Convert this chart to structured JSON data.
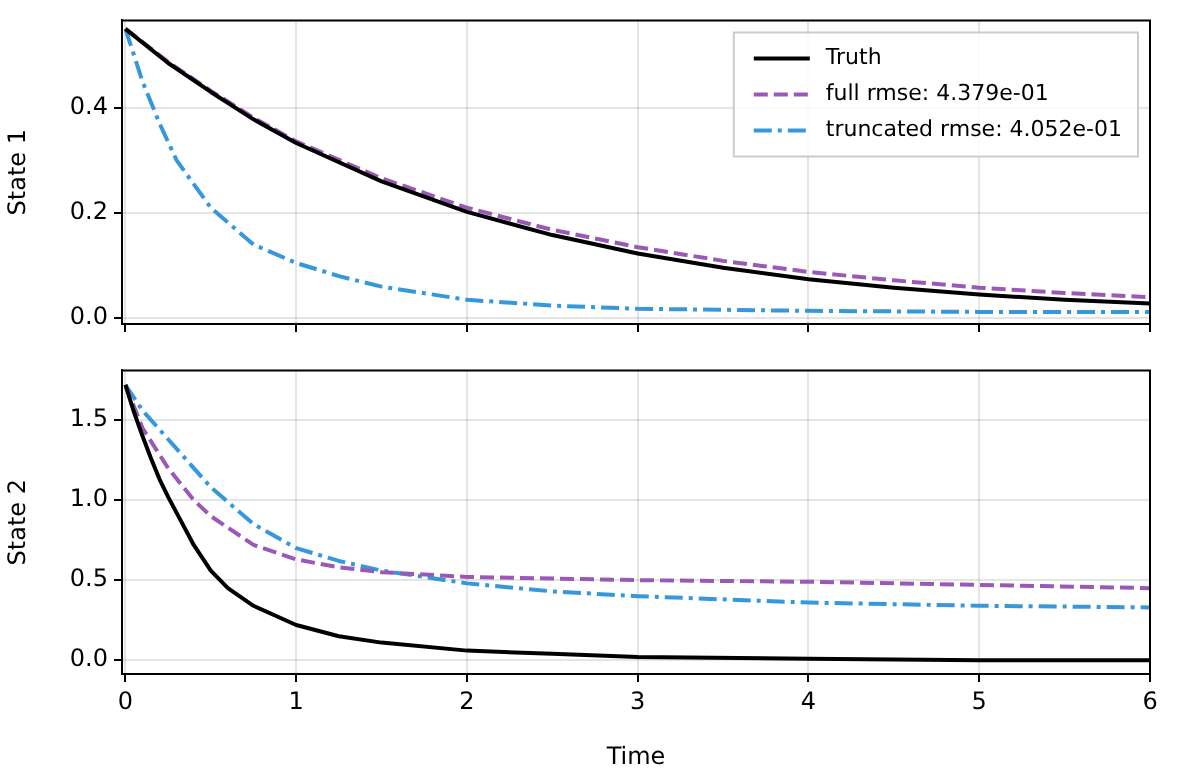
{
  "chart_data": [
    {
      "type": "line",
      "ylabel": "State 1",
      "xlim": [
        -0.02,
        6
      ],
      "xticks": [
        0,
        1,
        2,
        3,
        4,
        5,
        6
      ],
      "ylim": [
        -0.011,
        0.566
      ],
      "yticks": [
        {
          "value": 0,
          "label": "0.0"
        },
        {
          "value": 0.2,
          "label": "0.2"
        },
        {
          "value": 0.4,
          "label": "0.4"
        }
      ],
      "tick_labels": "y",
      "grid": true,
      "legend": "top right",
      "marker": "none",
      "series": [
        {
          "name": "Truth",
          "color": "#000000",
          "line_style": "solid",
          "x": [
            0,
            0.25,
            0.5,
            0.75,
            1,
            1.5,
            2,
            2.5,
            3,
            3.5,
            4,
            4.5,
            5,
            5.5,
            6
          ],
          "values": [
            0.55,
            0.485,
            0.43,
            0.378,
            0.333,
            0.26,
            0.202,
            0.158,
            0.123,
            0.096,
            0.074,
            0.058,
            0.045,
            0.035,
            0.028
          ]
        },
        {
          "name": "full rmse: 4.379e-01",
          "color": "#9b59b6",
          "line_style": "dashed",
          "x": [
            0,
            0.25,
            0.5,
            0.75,
            1,
            1.5,
            2,
            2.5,
            3,
            3.5,
            4,
            4.5,
            5,
            5.5,
            6
          ],
          "values": [
            0.55,
            0.487,
            0.432,
            0.381,
            0.336,
            0.266,
            0.21,
            0.168,
            0.135,
            0.109,
            0.088,
            0.072,
            0.058,
            0.048,
            0.04
          ]
        },
        {
          "name": "truncated rmse: 4.052e-01",
          "color": "#3498db",
          "line_style": "dashdot",
          "x": [
            0,
            0.1,
            0.2,
            0.3,
            0.5,
            0.75,
            1,
            1.25,
            1.5,
            2,
            2.5,
            3,
            4,
            5,
            6
          ],
          "values": [
            0.55,
            0.45,
            0.37,
            0.3,
            0.21,
            0.14,
            0.105,
            0.08,
            0.06,
            0.035,
            0.024,
            0.018,
            0.014,
            0.012,
            0.012
          ]
        }
      ]
    },
    {
      "type": "line",
      "ylabel": "State 2",
      "xlabel": "Time",
      "xlim": [
        -0.02,
        6
      ],
      "xticks": [
        0,
        1,
        2,
        3,
        4,
        5,
        6
      ],
      "ylim": [
        -0.086,
        1.81
      ],
      "yticks": [
        {
          "value": 0,
          "label": "0.0"
        },
        {
          "value": 0.5,
          "label": "0.5"
        },
        {
          "value": 1,
          "label": "1.0"
        },
        {
          "value": 1.5,
          "label": "1.5"
        }
      ],
      "grid": true,
      "marker": "none",
      "series": [
        {
          "color": "#000000",
          "line_style": "solid",
          "x": [
            0,
            0.05,
            0.1,
            0.15,
            0.2,
            0.25,
            0.3,
            0.4,
            0.5,
            0.6,
            0.75,
            1,
            1.25,
            1.5,
            2,
            2.5,
            3,
            4,
            5,
            6
          ],
          "values": [
            1.72,
            1.55,
            1.4,
            1.26,
            1.13,
            1.02,
            0.92,
            0.72,
            0.56,
            0.45,
            0.34,
            0.22,
            0.15,
            0.11,
            0.06,
            0.04,
            0.02,
            0.01,
            0.0,
            0.0
          ]
        },
        {
          "color": "#9b59b6",
          "line_style": "dashed",
          "x": [
            0,
            0.1,
            0.25,
            0.4,
            0.5,
            0.75,
            1,
            1.25,
            1.5,
            2,
            2.5,
            3,
            4,
            5,
            6
          ],
          "values": [
            1.72,
            1.45,
            1.2,
            1.0,
            0.9,
            0.72,
            0.63,
            0.58,
            0.55,
            0.52,
            0.51,
            0.5,
            0.49,
            0.47,
            0.45
          ]
        },
        {
          "color": "#3498db",
          "line_style": "dashdot",
          "x": [
            0,
            0.1,
            0.25,
            0.4,
            0.5,
            0.75,
            1,
            1.25,
            1.5,
            2,
            2.5,
            3,
            4,
            5,
            6
          ],
          "values": [
            1.72,
            1.56,
            1.38,
            1.2,
            1.08,
            0.85,
            0.7,
            0.62,
            0.56,
            0.48,
            0.43,
            0.4,
            0.36,
            0.34,
            0.33
          ]
        }
      ]
    }
  ]
}
